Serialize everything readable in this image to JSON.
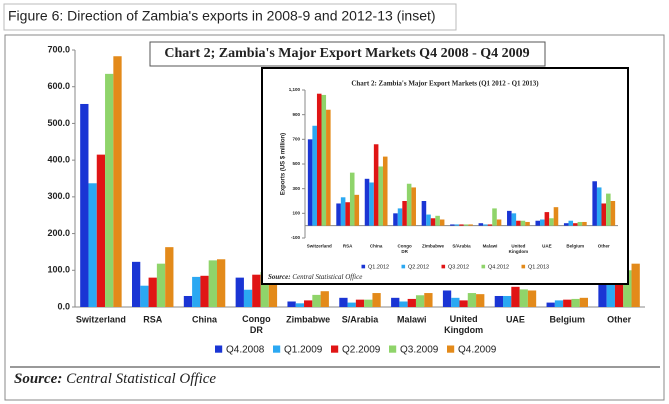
{
  "figure_caption": "Figure 6: Direction of Zambia's exports in 2008-9 and 2012-13 (inset)",
  "chart_data": [
    {
      "type": "bar",
      "title": "Chart 2; Zambia's Major Export Markets Q4 2008 - Q4 2009",
      "categories": [
        "Switzerland",
        "RSA",
        "China",
        "Congo DR",
        "Zimbabwe",
        "S/Arabia",
        "Malawi",
        "United Kingdom",
        "UAE",
        "Belgium",
        "Other"
      ],
      "series": [
        {
          "name": "Q4.2008",
          "color": "#1a35d4",
          "values": [
            553,
            123,
            30,
            80,
            15,
            25,
            25,
            45,
            30,
            12,
            100
          ]
        },
        {
          "name": "Q1.2009",
          "color": "#2ba8f2",
          "values": [
            337,
            58,
            82,
            47,
            10,
            12,
            15,
            25,
            30,
            18,
            90
          ]
        },
        {
          "name": "Q2.2009",
          "color": "#e01515",
          "values": [
            415,
            80,
            85,
            88,
            18,
            20,
            22,
            18,
            55,
            20,
            80
          ]
        },
        {
          "name": "Q3.2009",
          "color": "#8fd46a",
          "values": [
            635,
            118,
            127,
            95,
            33,
            20,
            32,
            38,
            48,
            22,
            100
          ]
        },
        {
          "name": "Q4.2009",
          "color": "#e38a1a",
          "values": [
            683,
            163,
            130,
            90,
            43,
            38,
            38,
            35,
            45,
            25,
            118
          ]
        }
      ],
      "ylim": [
        0,
        700
      ],
      "yticks": [
        {
          "value": 0,
          "label": "0.0"
        },
        {
          "value": 100,
          "label": "100.0"
        },
        {
          "value": 200,
          "label": "200.0"
        },
        {
          "value": 300,
          "label": "300.0"
        },
        {
          "value": 400,
          "label": "400.0"
        },
        {
          "value": 500,
          "label": "500.0"
        },
        {
          "value": 600,
          "label": "600.0"
        },
        {
          "value": 700,
          "label": "700.0"
        }
      ],
      "grid": false,
      "source_label": "Source:",
      "source": "Central Statistical Office"
    },
    {
      "type": "bar",
      "title": "Chart 2: Zambia's Major Export Markets (Q1 2012 - Q1 2013)",
      "y_label": "Exports (US $ million)",
      "categories": [
        "Switzerland",
        "RSA",
        "China",
        "Congo DR",
        "Zimbabwe",
        "S/Arabia",
        "Malawi",
        "United Kingdom",
        "UAE",
        "Belgium",
        "Other"
      ],
      "series": [
        {
          "name": "Q1.2012",
          "color": "#1a35d4",
          "values": [
            700,
            180,
            380,
            100,
            200,
            10,
            20,
            120,
            40,
            20,
            360
          ]
        },
        {
          "name": "Q2.2012",
          "color": "#2ba8f2",
          "values": [
            810,
            230,
            350,
            140,
            90,
            10,
            10,
            100,
            50,
            40,
            310
          ]
        },
        {
          "name": "Q3.2012",
          "color": "#e01515",
          "values": [
            1070,
            190,
            660,
            200,
            60,
            10,
            10,
            40,
            110,
            20,
            180
          ]
        },
        {
          "name": "Q4.2012",
          "color": "#8fd46a",
          "values": [
            1060,
            430,
            480,
            340,
            80,
            10,
            140,
            40,
            60,
            30,
            260
          ]
        },
        {
          "name": "Q1.2013",
          "color": "#e38a1a",
          "values": [
            940,
            250,
            560,
            310,
            50,
            10,
            50,
            30,
            150,
            30,
            200
          ]
        }
      ],
      "ylim": [
        -100,
        1100
      ],
      "yticks": [
        -100,
        100,
        300,
        500,
        700,
        900,
        {
          "value": 1100,
          "label": "1,100"
        }
      ],
      "grid": false,
      "source_label": "Source:",
      "source": "Central Statistical Office"
    }
  ]
}
